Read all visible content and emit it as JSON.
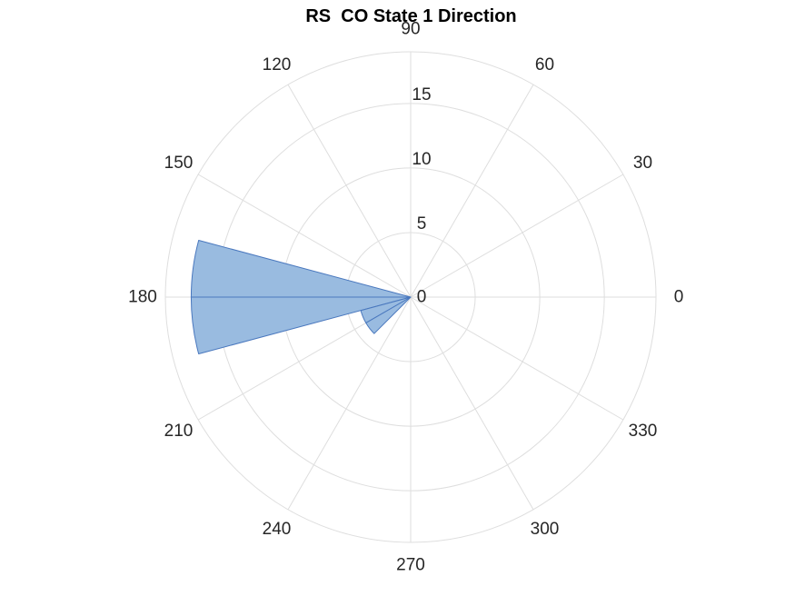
{
  "chart_data": {
    "type": "polar-histogram",
    "title": "RS  CO State 1 Direction",
    "angle_unit": "degrees",
    "angle_ticks": [
      0,
      30,
      60,
      90,
      120,
      150,
      180,
      210,
      240,
      270,
      300,
      330
    ],
    "radial_ticks": [
      0,
      5,
      10,
      15
    ],
    "rlim": [
      0,
      19
    ],
    "bin_width_deg": 15,
    "bins": [
      {
        "start": 165,
        "end": 180,
        "value": 17
      },
      {
        "start": 180,
        "end": 195,
        "value": 17
      },
      {
        "start": 195,
        "end": 210,
        "value": 4
      },
      {
        "start": 210,
        "end": 225,
        "value": 4
      }
    ],
    "grid": true,
    "colors": {
      "bar_fill": "#99bbe0",
      "bar_edge": "#4a78be",
      "grid": "#dedede",
      "tick_text": "#262626",
      "title": "#000000"
    }
  }
}
